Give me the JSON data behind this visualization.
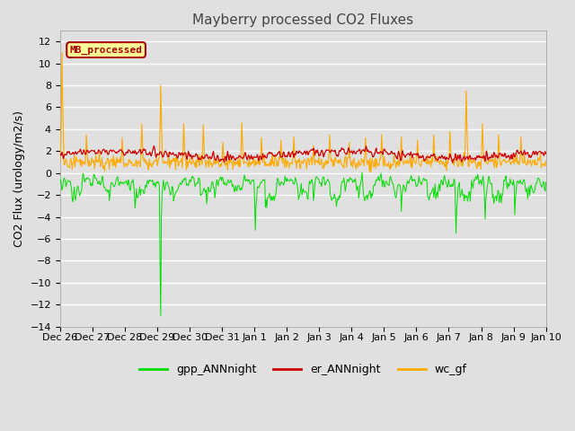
{
  "title": "Mayberry processed CO2 Fluxes",
  "ylabel": "CO2 Flux (urology/m2/s)",
  "ylim": [
    -14,
    13
  ],
  "yticks": [
    -14,
    -12,
    -10,
    -8,
    -6,
    -4,
    -2,
    0,
    2,
    4,
    6,
    8,
    10,
    12
  ],
  "background_color": "#e0e0e0",
  "plot_bg_color": "#e0e0e0",
  "grid_color": "white",
  "line_colors": {
    "gpp": "#00dd00",
    "er": "#cc0000",
    "wc": "#ffaa00"
  },
  "legend_label": "MB_processed",
  "legend_label_color": "#aa0000",
  "legend_box_color": "#ffff99",
  "date_labels": [
    "Dec 26",
    "Dec 27",
    "Dec 28",
    "Dec 29",
    "Dec 30",
    "Dec 31",
    "Jan 1",
    "Jan 2",
    "Jan 3",
    "Jan 4",
    "Jan 5",
    "Jan 6",
    "Jan 7",
    "Jan 8",
    "Jan 9",
    "Jan 10"
  ],
  "title_fontsize": 11,
  "axis_fontsize": 9,
  "tick_fontsize": 8
}
